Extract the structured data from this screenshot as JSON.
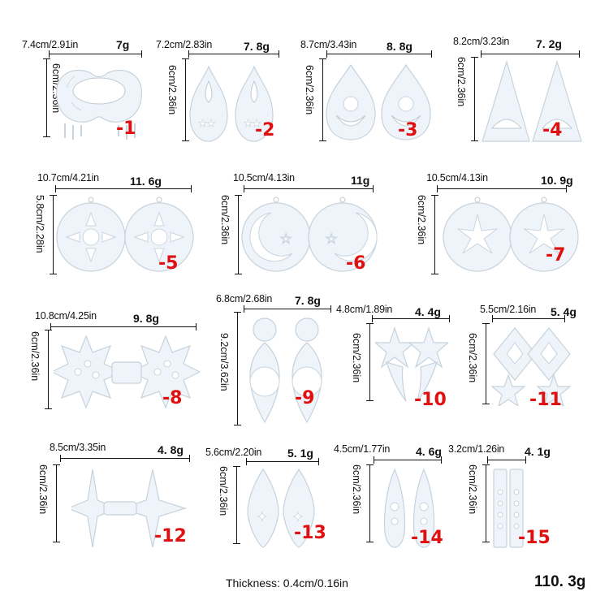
{
  "items": [
    {
      "id": "1",
      "width": "7.4cm/2.91in",
      "weight": "7g",
      "height": "6cm/2.36in",
      "label": "-1"
    },
    {
      "id": "2",
      "width": "7.2cm/2.83in",
      "weight": "7. 8g",
      "height": "6cm/2.36in",
      "label": "-2"
    },
    {
      "id": "3",
      "width": "8.7cm/3.43in",
      "weight": "8. 8g",
      "height": "6cm/2.36in",
      "label": "-3"
    },
    {
      "id": "4",
      "width": "8.2cm/3.23in",
      "weight": "7. 2g",
      "height": "6cm/2.36in",
      "label": "-4"
    },
    {
      "id": "5",
      "width": "10.7cm/4.21in",
      "weight": "11. 6g",
      "height": "5.8cm/2.28in",
      "label": "-5"
    },
    {
      "id": "6",
      "width": "10.5cm/4.13in",
      "weight": "11g",
      "height": "6cm/2.36in",
      "label": "-6"
    },
    {
      "id": "7",
      "width": "10.5cm/4.13in",
      "weight": "10. 9g",
      "height": "6cm/2.36in",
      "label": "-7"
    },
    {
      "id": "8",
      "width": "10.8cm/4.25in",
      "weight": "9. 8g",
      "height": "6cm/2.36in",
      "label": "-8"
    },
    {
      "id": "9",
      "width": "6.8cm/2.68in",
      "weight": "7. 8g",
      "height": "9.2cm/3.62in",
      "label": "-9"
    },
    {
      "id": "10",
      "width": "4.8cm/1.89in",
      "weight": "4. 4g",
      "height": "6cm/2.36in",
      "label": "-10"
    },
    {
      "id": "11",
      "width": "5.5cm/2.16in",
      "weight": "5. 4g",
      "height": "6cm/2.36in",
      "label": "-11"
    },
    {
      "id": "12",
      "width": "8.5cm/3.35in",
      "weight": "4. 8g",
      "height": "6cm/2.36in",
      "label": "-12"
    },
    {
      "id": "13",
      "width": "5.6cm/2.20in",
      "weight": "5. 1g",
      "height": "6cm/2.36in",
      "label": "-13"
    },
    {
      "id": "14",
      "width": "4.5cm/1.77in",
      "weight": "4. 6g",
      "height": "6cm/2.36in",
      "label": "-14"
    },
    {
      "id": "15",
      "width": "3.2cm/1.26in",
      "weight": "4. 1g",
      "height": "6cm/2.36in",
      "label": "-15"
    }
  ],
  "footer": {
    "thickness": "Thickness: 0.4cm/0.16in",
    "total_weight": "110. 3g"
  }
}
